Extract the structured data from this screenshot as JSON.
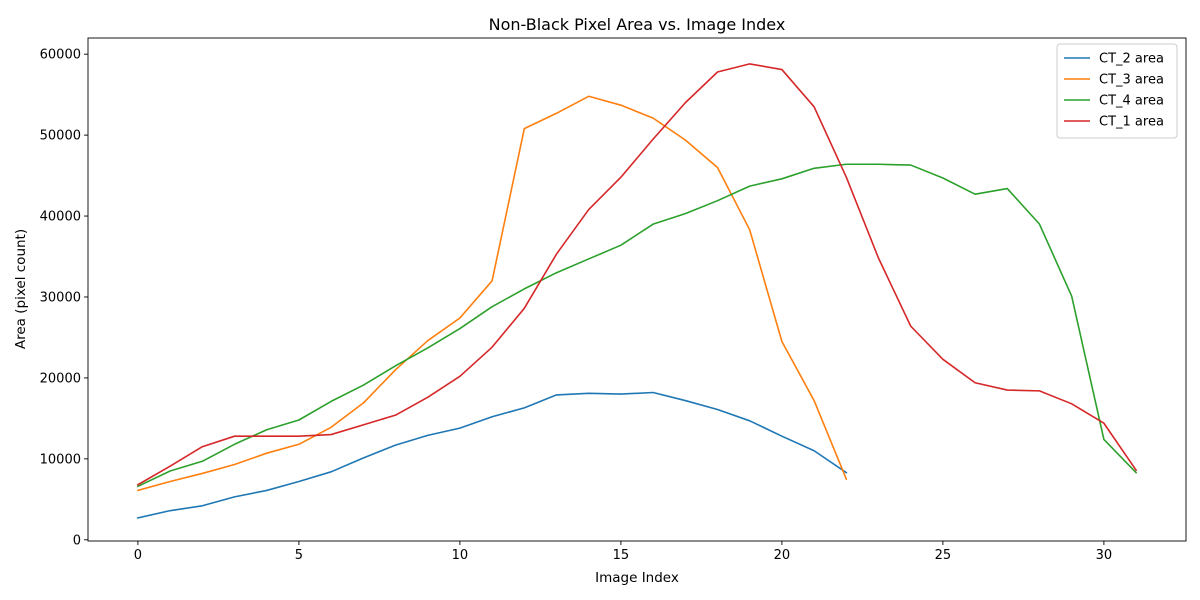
{
  "chart_data": {
    "type": "line",
    "title": "Non-Black Pixel Area vs. Image Index",
    "xlabel": "Image Index",
    "ylabel": "Area (pixel count)",
    "xlim": [
      -1.55,
      32.55
    ],
    "ylim": [
      -150,
      62000
    ],
    "xticks": [
      0,
      5,
      10,
      15,
      20,
      25,
      30
    ],
    "yticks": [
      0,
      10000,
      20000,
      30000,
      40000,
      50000,
      60000
    ],
    "grid": false,
    "legend_position": "top-right",
    "series": [
      {
        "name": "CT_2 area",
        "color": "#1f77b4",
        "x": [
          0,
          1,
          2,
          3,
          4,
          5,
          6,
          7,
          8,
          9,
          10,
          11,
          12,
          13,
          14,
          15,
          16,
          17,
          18,
          19,
          20,
          21,
          22
        ],
        "values": [
          2700,
          3600,
          4200,
          5300,
          6100,
          7200,
          8400,
          10100,
          11700,
          12900,
          13800,
          15200,
          16300,
          17900,
          18100,
          18000,
          18200,
          17200,
          16100,
          14700,
          12800,
          11000,
          8300
        ]
      },
      {
        "name": "CT_3 area",
        "color": "#ff7f0e",
        "x": [
          0,
          1,
          2,
          3,
          4,
          5,
          6,
          7,
          8,
          9,
          10,
          11,
          12,
          13,
          14,
          15,
          16,
          17,
          18,
          19,
          20,
          21,
          22
        ],
        "values": [
          6100,
          7200,
          8200,
          9300,
          10700,
          11800,
          13900,
          16900,
          21000,
          24600,
          27400,
          32000,
          50800,
          52700,
          54800,
          53700,
          52100,
          49400,
          46000,
          38300,
          24500,
          17200,
          7500
        ]
      },
      {
        "name": "CT_4 area",
        "color": "#2ca02c",
        "x": [
          0,
          1,
          2,
          3,
          4,
          5,
          6,
          7,
          8,
          9,
          10,
          11,
          12,
          13,
          14,
          15,
          16,
          17,
          18,
          19,
          20,
          21,
          22,
          23,
          24,
          25,
          26,
          27,
          28,
          29,
          30,
          31
        ],
        "values": [
          6600,
          8500,
          9700,
          11800,
          13600,
          14800,
          17100,
          19100,
          21500,
          23700,
          26100,
          28800,
          31000,
          33000,
          34700,
          36400,
          39000,
          40300,
          41900,
          43700,
          44600,
          45900,
          46400,
          46400,
          46300,
          44700,
          42700,
          43400,
          39000,
          30100,
          12400,
          8300
        ]
      },
      {
        "name": "CT_1 area",
        "color": "#d62728",
        "x": [
          0,
          1,
          2,
          3,
          4,
          5,
          6,
          7,
          8,
          9,
          10,
          11,
          12,
          13,
          14,
          15,
          16,
          17,
          18,
          19,
          20,
          21,
          22,
          23,
          24,
          25,
          26,
          27,
          28,
          29,
          30,
          31
        ],
        "values": [
          6800,
          9100,
          11500,
          12800,
          12800,
          12800,
          13000,
          14200,
          15400,
          17600,
          20200,
          23800,
          28600,
          35300,
          40800,
          44800,
          49500,
          54000,
          57800,
          58800,
          58100,
          53500,
          44800,
          34800,
          26400,
          22300,
          19400,
          18500,
          18400,
          16800,
          14400,
          8600
        ]
      }
    ]
  }
}
